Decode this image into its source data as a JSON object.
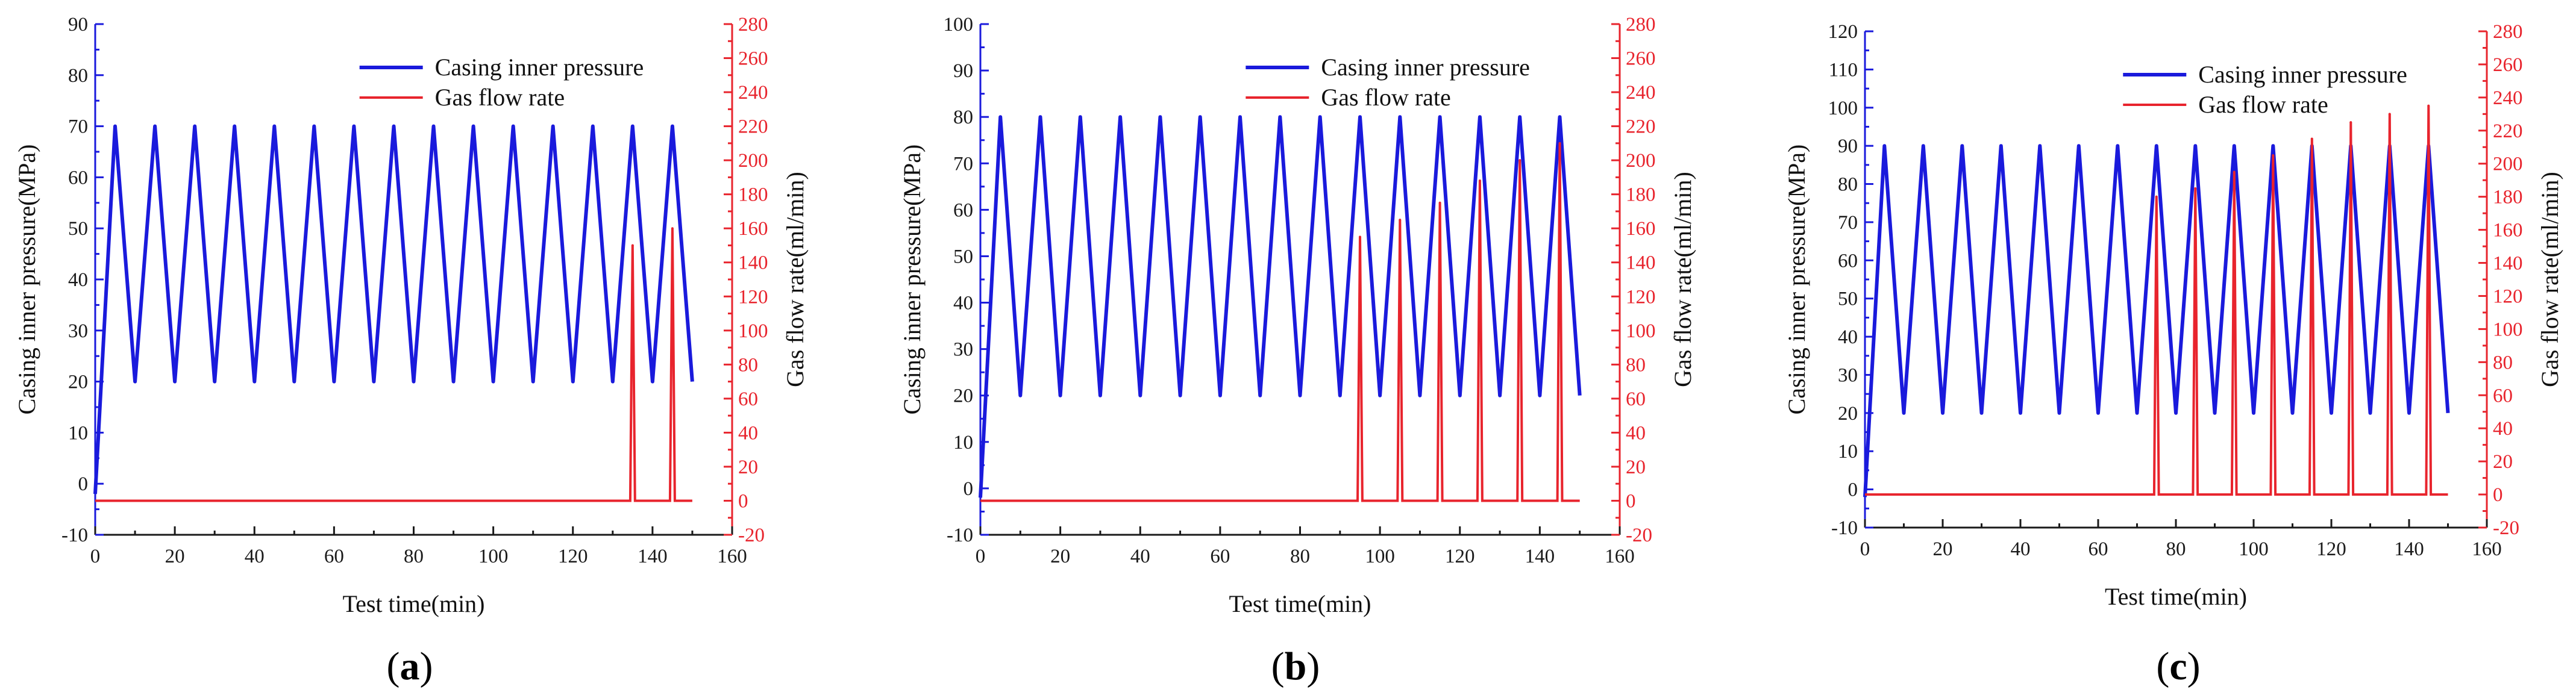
{
  "colors": {
    "pressure": "#1a1adc",
    "flow": "#e8242d",
    "axis": "#1a1a1a"
  },
  "chart_data": [
    {
      "type": "line",
      "panel_label": "a",
      "xlabel": "Test time(min)",
      "ylabel_left": "Casing inner pressure(MPa)",
      "ylabel_right": "Gas flow rate(ml/min)",
      "xlim": [
        0,
        160
      ],
      "xticks": [
        0,
        20,
        40,
        60,
        80,
        100,
        120,
        140,
        160
      ],
      "ylim_left": [
        -10,
        90
      ],
      "yticks_left": [
        -10,
        0,
        10,
        20,
        30,
        40,
        50,
        60,
        70,
        80,
        90
      ],
      "ylim_right": [
        -20,
        280
      ],
      "yticks_right": [
        -20,
        0,
        20,
        40,
        60,
        80,
        100,
        120,
        140,
        160,
        180,
        200,
        220,
        240,
        260,
        280
      ],
      "legend": [
        "Casing inner pressure",
        "Gas flow rate"
      ],
      "legend_position": "top-right",
      "pressure_cycle": {
        "start_min": 0,
        "start_value": -2,
        "first_peak_min": 5,
        "period_min": 10,
        "peak": 70,
        "trough": 20,
        "end_min": 150,
        "end_value": 20
      },
      "flow_baseline": 0,
      "flow_peaks": [
        {
          "x": 135,
          "y": 150
        },
        {
          "x": 145,
          "y": 160
        }
      ]
    },
    {
      "type": "line",
      "panel_label": "b",
      "xlabel": "Test time(min)",
      "ylabel_left": "Casing inner pressure(MPa)",
      "ylabel_right": "Gas flow rate(ml/min)",
      "xlim": [
        0,
        160
      ],
      "xticks": [
        0,
        20,
        40,
        60,
        80,
        100,
        120,
        140,
        160
      ],
      "ylim_left": [
        -10,
        100
      ],
      "yticks_left": [
        -10,
        0,
        10,
        20,
        30,
        40,
        50,
        60,
        70,
        80,
        90,
        100
      ],
      "ylim_right": [
        -20,
        280
      ],
      "yticks_right": [
        -20,
        0,
        20,
        40,
        60,
        80,
        100,
        120,
        140,
        160,
        180,
        200,
        220,
        240,
        260,
        280
      ],
      "legend": [
        "Casing inner pressure",
        "Gas flow rate"
      ],
      "legend_position": "top-right",
      "pressure_cycle": {
        "start_min": 0,
        "start_value": -2,
        "first_peak_min": 5,
        "period_min": 10,
        "peak": 80,
        "trough": 20,
        "end_min": 150,
        "end_value": 20
      },
      "flow_baseline": 0,
      "flow_peaks": [
        {
          "x": 95,
          "y": 155
        },
        {
          "x": 105,
          "y": 165
        },
        {
          "x": 115,
          "y": 175
        },
        {
          "x": 125,
          "y": 188
        },
        {
          "x": 135,
          "y": 200
        },
        {
          "x": 145,
          "y": 210
        }
      ]
    },
    {
      "type": "line",
      "panel_label": "c",
      "xlabel": "Test time(min)",
      "ylabel_left": "Casing inner pressure(MPa)",
      "ylabel_right": "Gas flow rate(ml/min)",
      "xlim": [
        0,
        160
      ],
      "xticks": [
        0,
        20,
        40,
        60,
        80,
        100,
        120,
        140,
        160
      ],
      "ylim_left": [
        -10,
        120
      ],
      "yticks_left": [
        -10,
        0,
        10,
        20,
        30,
        40,
        50,
        60,
        70,
        80,
        90,
        100,
        110,
        120
      ],
      "ylim_right": [
        -20,
        280
      ],
      "yticks_right": [
        -20,
        0,
        20,
        40,
        60,
        80,
        100,
        120,
        140,
        160,
        180,
        200,
        220,
        240,
        260,
        280
      ],
      "legend": [
        "Casing inner pressure",
        "Gas flow rate"
      ],
      "legend_position": "top-right",
      "pressure_cycle": {
        "start_min": 0,
        "start_value": -2,
        "first_peak_min": 5,
        "period_min": 10,
        "peak": 90,
        "trough": 20,
        "end_min": 150,
        "end_value": 20
      },
      "flow_baseline": 0,
      "flow_peaks": [
        {
          "x": 75,
          "y": 180
        },
        {
          "x": 85,
          "y": 185
        },
        {
          "x": 95,
          "y": 195
        },
        {
          "x": 105,
          "y": 205
        },
        {
          "x": 115,
          "y": 215
        },
        {
          "x": 125,
          "y": 225
        },
        {
          "x": 135,
          "y": 230
        },
        {
          "x": 145,
          "y": 235
        }
      ]
    }
  ]
}
